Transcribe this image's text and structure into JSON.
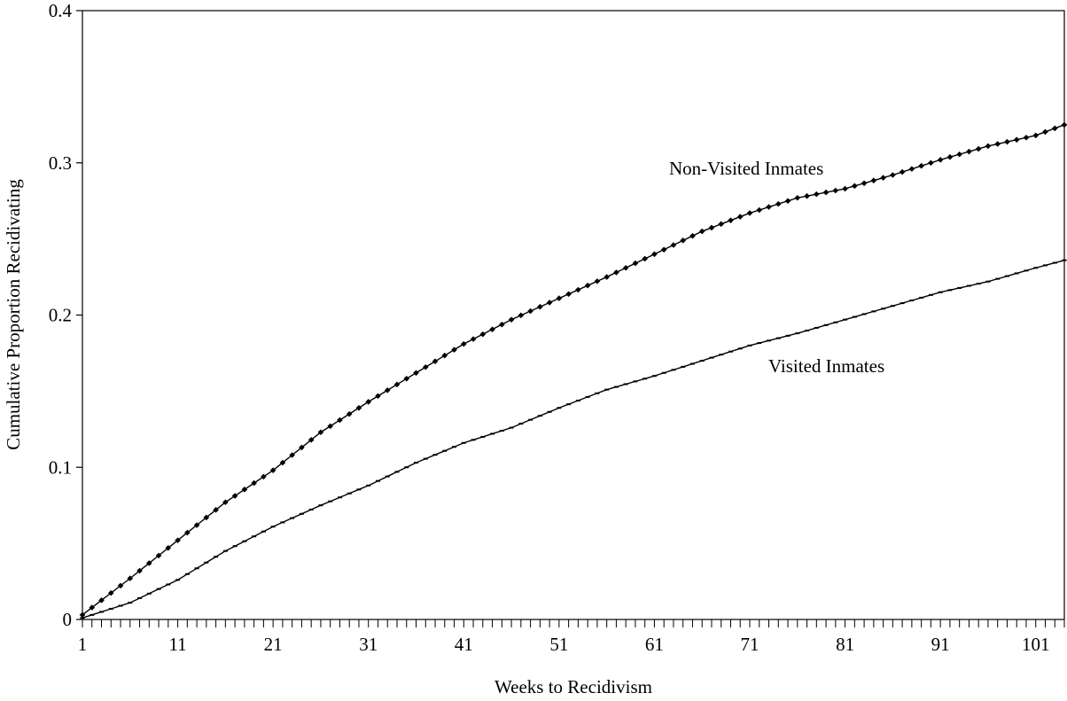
{
  "chart_data": {
    "type": "line",
    "title": "",
    "xlabel": "Weeks to Recidivism",
    "ylabel": "Cumulative Proportion Recidivating",
    "xlim": [
      1,
      104
    ],
    "ylim": [
      0,
      0.4
    ],
    "x_ticks": [
      1,
      11,
      21,
      31,
      41,
      51,
      61,
      71,
      81,
      91,
      101
    ],
    "x_tick_labels": [
      "1",
      "11",
      "21",
      "31",
      "41",
      "51",
      "61",
      "71",
      "81",
      "91",
      "101"
    ],
    "y_ticks": [
      0,
      0.1,
      0.2,
      0.3,
      0.4
    ],
    "y_tick_labels": [
      "0",
      "0.1",
      "0.2",
      "0.3",
      "0.4"
    ],
    "grid": false,
    "legend": "none",
    "series": [
      {
        "name": "Non-Visited Inmates",
        "marker": "diamond",
        "color": "#000000",
        "x": [
          1,
          6,
          11,
          16,
          21,
          26,
          31,
          36,
          41,
          46,
          51,
          56,
          61,
          66,
          71,
          76,
          81,
          86,
          91,
          96,
          101,
          104
        ],
        "y": [
          0.003,
          0.027,
          0.052,
          0.077,
          0.098,
          0.123,
          0.143,
          0.162,
          0.181,
          0.197,
          0.211,
          0.225,
          0.24,
          0.255,
          0.267,
          0.277,
          0.283,
          0.292,
          0.302,
          0.311,
          0.318,
          0.325
        ]
      },
      {
        "name": "Visited Inmates",
        "marker": "dash",
        "color": "#000000",
        "x": [
          1,
          6,
          11,
          16,
          21,
          26,
          31,
          36,
          41,
          46,
          51,
          56,
          61,
          66,
          71,
          76,
          81,
          86,
          91,
          96,
          101,
          104
        ],
        "y": [
          0.001,
          0.011,
          0.026,
          0.045,
          0.061,
          0.075,
          0.088,
          0.103,
          0.116,
          0.126,
          0.139,
          0.151,
          0.16,
          0.17,
          0.18,
          0.188,
          0.197,
          0.206,
          0.215,
          0.222,
          0.231,
          0.236
        ]
      }
    ]
  }
}
